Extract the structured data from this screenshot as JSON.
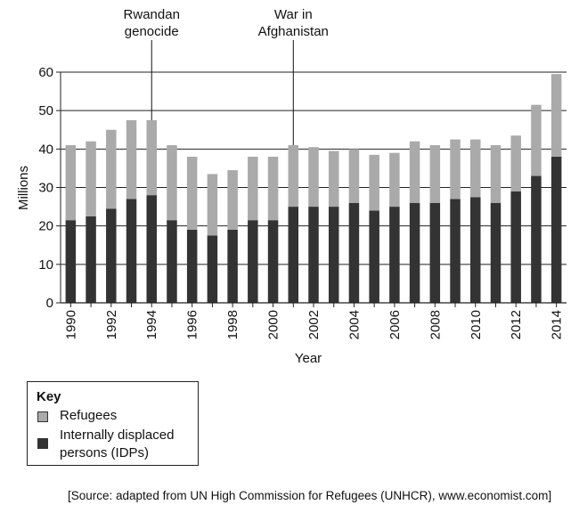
{
  "chart_data": {
    "type": "bar",
    "stacked": true,
    "ylabel": "Millions",
    "xlabel": "Year",
    "ylim": [
      0,
      60
    ],
    "yticks": [
      0,
      10,
      20,
      30,
      40,
      50,
      60
    ],
    "grid": "horizontal",
    "categories": [
      1990,
      1991,
      1992,
      1993,
      1994,
      1995,
      1996,
      1997,
      1998,
      1999,
      2000,
      2001,
      2002,
      2003,
      2004,
      2005,
      2006,
      2007,
      2008,
      2009,
      2010,
      2011,
      2012,
      2013,
      2014
    ],
    "x_tick_labels": [
      "1990",
      "1992",
      "1994",
      "1996",
      "1998",
      "2000",
      "2002",
      "2004",
      "2006",
      "2008",
      "2010",
      "2012",
      "2014"
    ],
    "series": [
      {
        "name": "Internally displaced persons (IDPs)",
        "color": "#333333",
        "values": [
          21.5,
          22.5,
          24.5,
          27,
          28,
          21.5,
          19,
          17.5,
          19,
          21.5,
          21.5,
          25,
          25,
          25,
          26,
          24,
          25,
          26,
          26,
          27,
          27.5,
          26,
          29,
          33,
          38
        ]
      },
      {
        "name": "Refugees",
        "color": "#aaaaaa",
        "values": [
          19.5,
          19.5,
          20.5,
          20.5,
          19.5,
          19.5,
          19,
          16,
          15.5,
          16.5,
          16.5,
          16,
          15.5,
          14.5,
          14,
          14.5,
          14,
          16,
          15,
          15.5,
          15,
          15,
          14.5,
          18.5,
          21.5
        ]
      }
    ],
    "annotations": [
      {
        "text_line1": "Rwandan",
        "text_line2": "genocide",
        "year": 1994
      },
      {
        "text_line1": "War in",
        "text_line2": "Afghanistan",
        "year": 2001
      }
    ]
  },
  "key": {
    "title": "Key",
    "items": [
      {
        "label_line1": "Refugees",
        "label_line2": "",
        "color": "#aaaaaa"
      },
      {
        "label_line1": "Internally displaced",
        "label_line2": "persons (IDPs)",
        "color": "#333333"
      }
    ]
  },
  "source": "[Source: adapted from UN High Commission for Refugees (UNHCR), www.economist.com]"
}
